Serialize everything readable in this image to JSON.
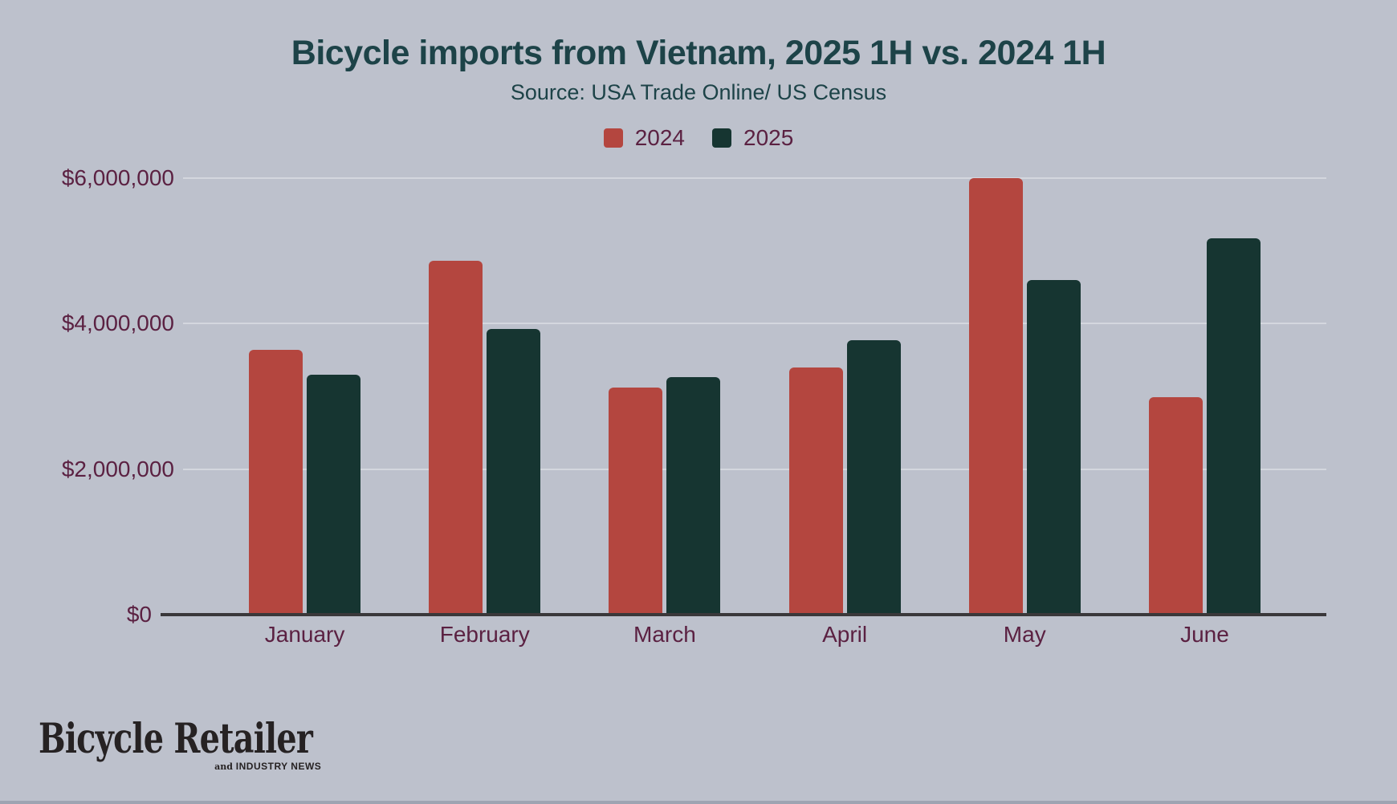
{
  "header": {
    "title": "Bicycle imports from Vietnam, 2025 1H vs. 2024 1H",
    "source": "Source: USA Trade Online/ US Census"
  },
  "legend": {
    "position": "top-center",
    "items": [
      {
        "label": "2024",
        "color": "#b4463f"
      },
      {
        "label": "2025",
        "color": "#163531"
      }
    ]
  },
  "chart_data": {
    "type": "bar",
    "title": "Bicycle imports from Vietnam, 2025 1H vs. 2024 1H",
    "subtitle": "Source: USA Trade Online/ US Census",
    "categories": [
      "January",
      "February",
      "March",
      "April",
      "May",
      "June"
    ],
    "series": [
      {
        "name": "2024",
        "color": "#b4463f",
        "values": [
          3640000,
          4860000,
          3120000,
          3400000,
          6000000,
          2990000
        ]
      },
      {
        "name": "2025",
        "color": "#163531",
        "values": [
          3300000,
          3930000,
          3260000,
          3770000,
          4600000,
          5170000
        ]
      }
    ],
    "xlabel": "",
    "ylabel": "",
    "ylim": [
      0,
      6600000
    ],
    "y_ticks": [
      {
        "value": 0,
        "label": "$0"
      },
      {
        "value": 2000000,
        "label": "$2,000,000"
      },
      {
        "value": 4000000,
        "label": "$4,000,000"
      },
      {
        "value": 6000000,
        "label": "$6,000,000"
      }
    ],
    "grid": "horizontal-only",
    "legend_position": "top-center"
  },
  "branding": {
    "logo_main": "Bicycle Retailer",
    "logo_tagline_prefix": "and ",
    "logo_tagline_caps": "INDUSTRY NEWS"
  },
  "colors": {
    "background": "#bdc1cc",
    "bar_2024": "#b4463f",
    "bar_2025": "#163531",
    "title_text": "#1d4348",
    "tick_label_text": "#5b2142",
    "gridline": "#d4d7de",
    "axis_line": "#3a383a",
    "logo_text": "#262223"
  }
}
